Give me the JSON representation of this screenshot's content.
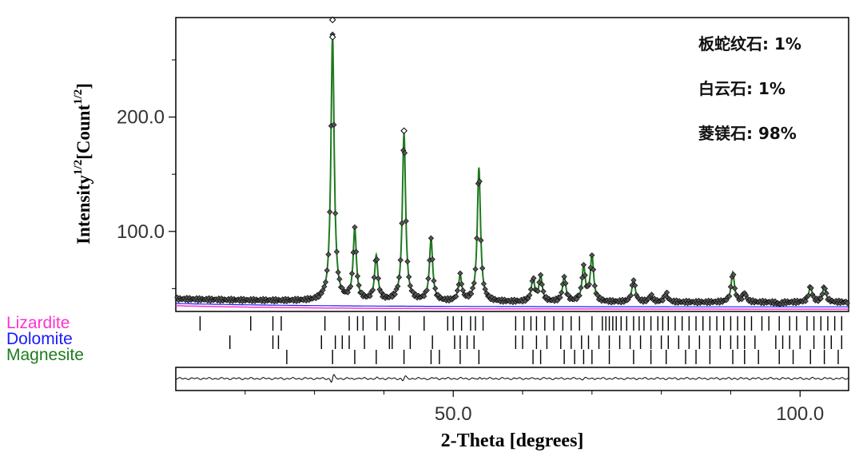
{
  "chart_data": {
    "type": "line",
    "title": "",
    "xlabel": "2-Theta [degrees]",
    "ylabel_main": "Intensity",
    "ylabel_unit": "[Count",
    "ylabel_exp": "1/2",
    "xlim": [
      10,
      107
    ],
    "ylim": [
      30,
      287
    ],
    "x_ticks": [
      50.0,
      100.0
    ],
    "x_tick_labels": [
      "50.0",
      "100.0"
    ],
    "y_ticks": [
      100.0,
      200.0
    ],
    "y_tick_labels": [
      "100.0",
      "200.0"
    ],
    "grid": false,
    "annotations": [
      "板蛇纹石: 1%",
      "白云石: 1%",
      "菱镁石: 98%"
    ],
    "background_level": 38,
    "peaks": [
      {
        "x": 32.6,
        "height": 270
      },
      {
        "x": 35.8,
        "height": 100
      },
      {
        "x": 38.9,
        "height": 77
      },
      {
        "x": 42.9,
        "height": 185
      },
      {
        "x": 46.8,
        "height": 92
      },
      {
        "x": 51.0,
        "height": 60
      },
      {
        "x": 53.7,
        "height": 155
      },
      {
        "x": 61.5,
        "height": 58
      },
      {
        "x": 62.6,
        "height": 60
      },
      {
        "x": 66.0,
        "height": 60
      },
      {
        "x": 68.8,
        "height": 68
      },
      {
        "x": 70.0,
        "height": 78
      },
      {
        "x": 76.0,
        "height": 58
      },
      {
        "x": 78.5,
        "height": 44
      },
      {
        "x": 80.7,
        "height": 46
      },
      {
        "x": 83.5,
        "height": 38
      },
      {
        "x": 87.0,
        "height": 38
      },
      {
        "x": 90.3,
        "height": 64
      },
      {
        "x": 92.0,
        "height": 46
      },
      {
        "x": 97.0,
        "height": 36
      },
      {
        "x": 101.5,
        "height": 52
      },
      {
        "x": 103.5,
        "height": 52
      }
    ],
    "series": [
      {
        "name": "Lizardite",
        "color": "#ff33cc"
      },
      {
        "name": "Dolomite",
        "color": "#1a1aff"
      },
      {
        "name": "Magnesite",
        "color": "#1f7a1f"
      }
    ],
    "tick_marks": [
      [
        13.5,
        20.8,
        24.0,
        25.2,
        31.5,
        35.0,
        36.2,
        37.0,
        39.0,
        40.2,
        42.2,
        45.8,
        49.2,
        50.0,
        51.2,
        52.5,
        53.2,
        54.3,
        59.0,
        60.2,
        61.2,
        62.0,
        63.2,
        64.5,
        65.8,
        67.0,
        68.2,
        70.0,
        71.5,
        72.0,
        72.5,
        73.0,
        73.5,
        74.2,
        75.0,
        76.0,
        76.8,
        77.5,
        78.5,
        79.5,
        80.2,
        81.0,
        82.0,
        83.0,
        84.0,
        85.0,
        86.0,
        87.0,
        88.0,
        89.0,
        90.0,
        91.0,
        92.0,
        93.0,
        94.5,
        95.5,
        97.0,
        98.5,
        99.5,
        101.0,
        102.0,
        103.0,
        104.0,
        105.0,
        106.0
      ],
      [
        17.8,
        24.0,
        24.8,
        31.0,
        33.0,
        34.0,
        35.0,
        37.2,
        40.8,
        41.2,
        43.8,
        47.0,
        50.2,
        51.0,
        52.0,
        53.0,
        59.0,
        60.0,
        62.0,
        63.5,
        65.5,
        67.0,
        68.5,
        69.5,
        71.0,
        72.5,
        74.0,
        75.5,
        77.0,
        78.5,
        80.0,
        81.0,
        82.5,
        84.0,
        85.5,
        87.0,
        88.5,
        90.0,
        91.0,
        92.0,
        93.5,
        96.5,
        97.5,
        98.5,
        100.0,
        102.0,
        103.5,
        104.5,
        106.0
      ],
      [
        26.0,
        32.6,
        35.8,
        38.9,
        42.9,
        46.8,
        48.0,
        51.0,
        53.7,
        61.5,
        62.6,
        66.0,
        67.5,
        68.8,
        70.0,
        72.5,
        76.0,
        78.5,
        80.7,
        83.5,
        85.0,
        87.0,
        90.3,
        92.0,
        94.0,
        97.0,
        99.0,
        101.5,
        103.5,
        105.5
      ]
    ]
  }
}
